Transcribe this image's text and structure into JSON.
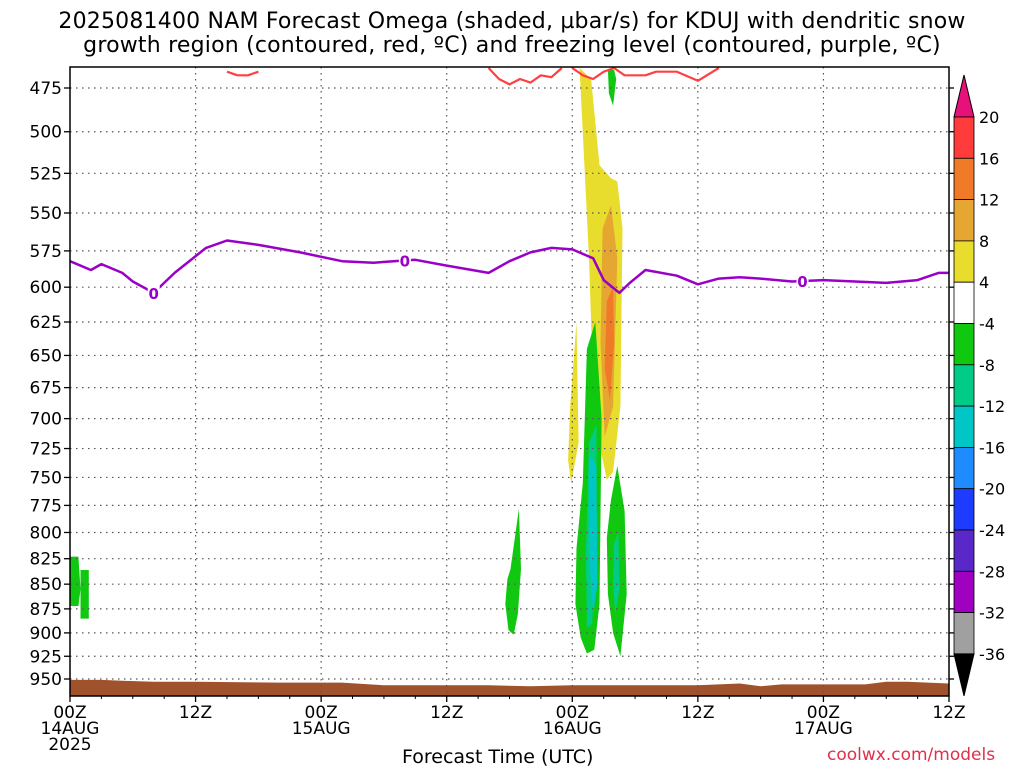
{
  "title_line1": "2025081400 NAM Forecast Omega (shaded, µbar/s) for KDUJ with dendritic snow",
  "title_line2": "growth region (contoured, red, ºC) and freezing level (contoured, purple, ºC)",
  "credit": "coolwx.com/models",
  "chart_data": {
    "type": "time-height cross section",
    "xlabel": "Forecast Time (UTC)",
    "x_ticks": [
      {
        "hour": 0,
        "lines": [
          "00Z",
          "14AUG",
          "2025"
        ]
      },
      {
        "hour": 12,
        "lines": [
          "12Z"
        ]
      },
      {
        "hour": 24,
        "lines": [
          "00Z",
          "15AUG"
        ]
      },
      {
        "hour": 36,
        "lines": [
          "12Z"
        ]
      },
      {
        "hour": 48,
        "lines": [
          "00Z",
          "16AUG"
        ]
      },
      {
        "hour": 60,
        "lines": [
          "12Z"
        ]
      },
      {
        "hour": 72,
        "lines": [
          "00Z",
          "17AUG"
        ]
      },
      {
        "hour": 84,
        "lines": [
          "12Z"
        ]
      }
    ],
    "xlim_hours": [
      0,
      84
    ],
    "y_unit": "hPa",
    "y_ticks": [
      475,
      500,
      525,
      550,
      575,
      600,
      625,
      650,
      675,
      700,
      725,
      750,
      775,
      800,
      825,
      850,
      875,
      900,
      925,
      950
    ],
    "ylim_hPa": [
      462,
      968
    ],
    "grid": "dotted",
    "colorbar": {
      "labels": [
        "20",
        "16",
        "12",
        "8",
        "4",
        "-4",
        "-8",
        "-12",
        "-16",
        "-20",
        "-24",
        "-28",
        "-32",
        "-36"
      ],
      "bins": [
        {
          "range": [
            16,
            20
          ],
          "color": "#ff3b3b"
        },
        {
          "range": [
            12,
            16
          ],
          "color": "#f07a28"
        },
        {
          "range": [
            8,
            12
          ],
          "color": "#e6a632"
        },
        {
          "range": [
            4,
            8
          ],
          "color": "#e8dc2c"
        },
        {
          "range": [
            -4,
            4
          ],
          "color": "#ffffff"
        },
        {
          "range": [
            -8,
            -4
          ],
          "color": "#10c810"
        },
        {
          "range": [
            -12,
            -8
          ],
          "color": "#00cc88"
        },
        {
          "range": [
            -16,
            -12
          ],
          "color": "#00c6c6"
        },
        {
          "range": [
            -20,
            -16
          ],
          "color": "#1e8cff"
        },
        {
          "range": [
            -24,
            -20
          ],
          "color": "#1e3cff"
        },
        {
          "range": [
            -28,
            -24
          ],
          "color": "#5a28c8"
        },
        {
          "range": [
            -32,
            -28
          ],
          "color": "#a000c0"
        },
        {
          "range": [
            -36,
            -32
          ],
          "color": "#a0a0a0"
        }
      ],
      "over_color": "#e8107a",
      "under_color": "#000000"
    },
    "freezing_level": {
      "label": "0",
      "color": "#9a00c8",
      "hours": [
        0,
        2,
        3,
        5,
        6,
        8,
        10,
        13,
        15,
        18,
        22,
        26,
        29,
        33,
        36,
        40,
        42,
        44,
        46,
        48,
        50,
        51,
        52.5,
        53.5,
        55,
        58,
        60,
        62,
        64,
        66,
        69,
        72,
        75,
        78,
        81,
        83,
        84
      ],
      "hPa": [
        582,
        588,
        584,
        590,
        596,
        604,
        590,
        573,
        568,
        571,
        576,
        582,
        583,
        581,
        585,
        590,
        582,
        576,
        573,
        574,
        580,
        595,
        604,
        597,
        588,
        592,
        598,
        594,
        593,
        594,
        596,
        595,
        596,
        597,
        595,
        590,
        590
      ],
      "label_hours": [
        8,
        32,
        70
      ]
    },
    "dgz_contour": {
      "color": "#ff4040",
      "segments": [
        {
          "hours": [
            15,
            16,
            17,
            18
          ],
          "hPa": [
            466,
            468,
            468,
            466
          ]
        },
        {
          "hours": [
            40,
            41,
            42,
            43,
            44,
            45,
            46,
            47
          ],
          "hPa": [
            464,
            470,
            473,
            470,
            472,
            468,
            469,
            464
          ]
        },
        {
          "hours": [
            48,
            49,
            50,
            51,
            52,
            53,
            54,
            55,
            56,
            58,
            60,
            62
          ],
          "hPa": [
            464,
            468,
            470,
            466,
            464,
            468,
            468,
            468,
            466,
            466,
            471,
            464
          ]
        }
      ]
    },
    "omega_features": [
      {
        "value": 6,
        "color": "#e8dc2c",
        "hours": [
          48.7,
          49.8,
          50.6,
          51.7,
          52.3,
          52.8,
          52.6,
          51.9,
          51.3,
          50.1,
          49.6
        ],
        "hPa": [
          464,
          470,
          520,
          528,
          530,
          560,
          690,
          745,
          752,
          700,
          580
        ]
      },
      {
        "value": 6,
        "color": "#e8dc2c",
        "hours": [
          47.8,
          48.4,
          48.6,
          47.9,
          47.6
        ],
        "hPa": [
          690,
          625,
          720,
          755,
          735
        ]
      },
      {
        "value": 10,
        "color": "#e6a632",
        "hours": [
          50.9,
          51.7,
          52.3,
          51.9,
          51.1,
          50.7
        ],
        "hPa": [
          560,
          545,
          580,
          690,
          715,
          640
        ]
      },
      {
        "value": 14,
        "color": "#f07a28",
        "hours": [
          51.3,
          51.9,
          52.0,
          51.6,
          51.1
        ],
        "hPa": [
          610,
          600,
          640,
          685,
          660
        ]
      },
      {
        "value": -6,
        "color": "#10c810",
        "hours": [
          49.4,
          50.2,
          50.8,
          50.6,
          50.1,
          49.4,
          48.8,
          48.3,
          48.4,
          49.0
        ],
        "hPa": [
          645,
          625,
          700,
          870,
          918,
          922,
          905,
          870,
          815,
          755
        ]
      },
      {
        "value": -6,
        "color": "#10c810",
        "hours": [
          51.7,
          52.3,
          53.0,
          53.2,
          52.6,
          51.9,
          51.4,
          51.3
        ],
        "hPa": [
          770,
          740,
          780,
          860,
          925,
          900,
          860,
          805
        ]
      },
      {
        "value": -6,
        "color": "#10c810",
        "hours": [
          42.1,
          42.9,
          43.1,
          42.8,
          42.4,
          41.9,
          41.6,
          41.8
        ],
        "hPa": [
          835,
          778,
          835,
          880,
          902,
          897,
          870,
          845
        ]
      },
      {
        "value": -6,
        "color": "#10c810",
        "hours": [
          0,
          0.8,
          1.0,
          0.8,
          0
        ],
        "hPa": [
          823,
          823,
          855,
          872,
          872
        ]
      },
      {
        "value": -6,
        "color": "#10c810",
        "hours": [
          1.0,
          1.8,
          1.8,
          1.0
        ],
        "hPa": [
          836,
          836,
          885,
          885
        ]
      },
      {
        "value": -6,
        "color": "#10c810",
        "hours": [
          51.4,
          52.0,
          52.2,
          51.9,
          51.5
        ],
        "hPa": [
          465,
          465,
          470,
          485,
          478
        ]
      },
      {
        "value": -10,
        "color": "#00cc88",
        "hours": [
          49.6,
          50.3,
          50.3,
          49.9,
          49.4,
          49.3
        ],
        "hPa": [
          720,
          705,
          790,
          890,
          895,
          820
        ]
      },
      {
        "value": -14,
        "color": "#00c6c6",
        "hours": [
          49.6,
          50.3,
          50.4,
          50.0,
          49.6
        ],
        "hPa": [
          730,
          740,
          850,
          880,
          820
        ]
      },
      {
        "value": -10,
        "color": "#00cc88",
        "hours": [
          52.0,
          52.4,
          52.5,
          52.1,
          51.9
        ],
        "hPa": [
          810,
          800,
          855,
          880,
          850
        ]
      }
    ],
    "terrain": {
      "color": "#a0522d",
      "hours": [
        0,
        3,
        5,
        8,
        12,
        20,
        26,
        30,
        36,
        40,
        44,
        48,
        54,
        60,
        64,
        66,
        68,
        72,
        76,
        78,
        80,
        84
      ],
      "hPa": [
        951,
        951,
        952,
        953,
        953,
        954,
        954,
        957,
        957,
        957,
        958,
        957,
        957,
        957,
        955,
        958,
        956,
        956,
        956,
        953,
        953,
        955
      ]
    }
  }
}
